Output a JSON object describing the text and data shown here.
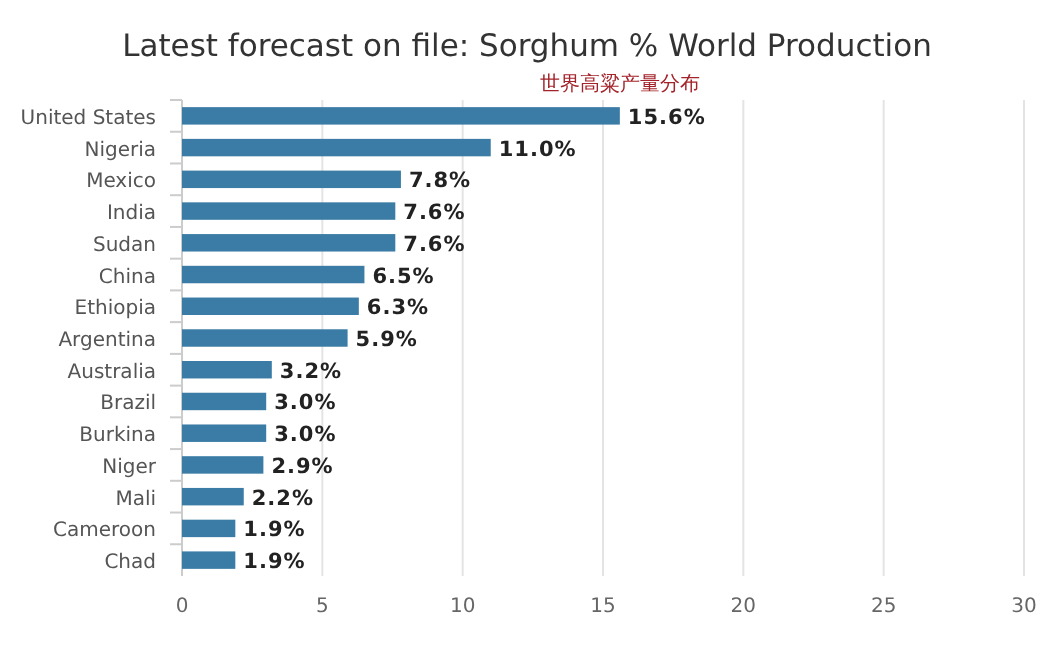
{
  "chart_data": {
    "type": "bar",
    "orientation": "horizontal",
    "title": "Latest forecast on file: Sorghum % World Production",
    "subtitle": "世界高粱产量分布",
    "categories": [
      "United States",
      "Nigeria",
      "Mexico",
      "India",
      "Sudan",
      "China",
      "Ethiopia",
      "Argentina",
      "Australia",
      "Brazil",
      "Burkina",
      "Niger",
      "Mali",
      "Cameroon",
      "Chad"
    ],
    "values": [
      15.6,
      11.0,
      7.8,
      7.6,
      7.6,
      6.5,
      6.3,
      5.9,
      3.2,
      3.0,
      3.0,
      2.9,
      2.2,
      1.9,
      1.9
    ],
    "value_labels": [
      "15.6%",
      "11.0%",
      "7.8%",
      "7.6%",
      "7.6%",
      "6.5%",
      "6.3%",
      "5.9%",
      "3.2%",
      "3.0%",
      "3.0%",
      "2.9%",
      "2.2%",
      "1.9%",
      "1.9%"
    ],
    "color": "#3a7ca5",
    "xlim": [
      0,
      30
    ],
    "xticks": [
      0,
      5,
      10,
      15,
      20,
      25,
      30
    ],
    "grid": "x"
  }
}
